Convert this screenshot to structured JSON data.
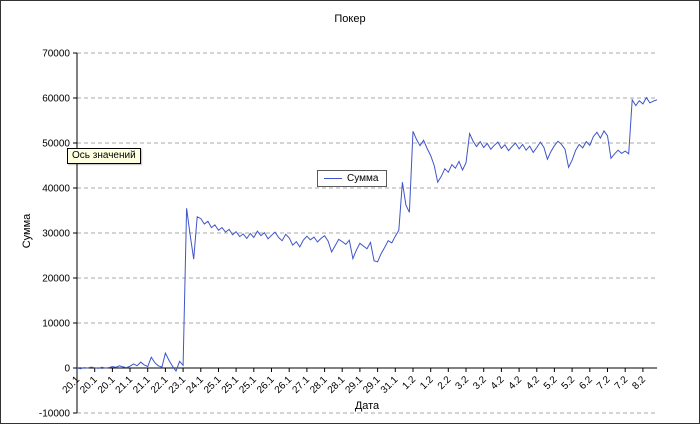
{
  "chart_data": {
    "type": "line",
    "title": "Покер",
    "xlabel": "Дата",
    "ylabel": "Сумма",
    "legend": "Сумма",
    "legend_position": "center",
    "tooltip": "Ось значений",
    "ylim": [
      -10000,
      70000
    ],
    "yticks": [
      70000,
      60000,
      50000,
      40000,
      30000,
      20000,
      10000,
      0,
      -10000
    ],
    "axis_cross": 0,
    "grid": "dashed-horizontal",
    "label_every": 5,
    "x_tick_labels": [
      "20.1",
      "20.1",
      "20.1",
      "21.1",
      "21.1",
      "22.1",
      "23.1",
      "24.1",
      "25.1",
      "25.1",
      "25.1",
      "26.1",
      "26.1",
      "27.1",
      "28.1",
      "28.1",
      "29.1",
      "29.1",
      "31.1",
      "1.2",
      "1.2",
      "2.2",
      "3.2",
      "3.2",
      "4.2",
      "4.2",
      "4.2",
      "5.2",
      "5.2",
      "6.2",
      "7.2",
      "7.2",
      "8.2"
    ],
    "colors": {
      "line": "#4055c8",
      "grid": "#a8a8a8",
      "axis": "#000000",
      "tooltip_bg": "#ffffe1"
    },
    "values": [
      0,
      -150,
      100,
      0,
      200,
      50,
      -100,
      150,
      0,
      100,
      300,
      150,
      500,
      250,
      100,
      400,
      900,
      500,
      1300,
      700,
      300,
      2400,
      1200,
      500,
      200,
      3300,
      1700,
      400,
      -700,
      1500,
      600,
      35500,
      29500,
      24200,
      33600,
      33200,
      32000,
      32600,
      31200,
      31800,
      30600,
      31200,
      30200,
      30800,
      29600,
      30300,
      29200,
      29800,
      28800,
      29900,
      29000,
      30400,
      29400,
      30100,
      28700,
      29500,
      30200,
      29000,
      28300,
      29700,
      28900,
      27300,
      28100,
      26900,
      28400,
      29300,
      28500,
      29100,
      28000,
      28800,
      29400,
      28200,
      25800,
      27200,
      28600,
      28100,
      27500,
      28400,
      24300,
      26200,
      27700,
      27100,
      26500,
      27900,
      23800,
      23600,
      25400,
      26800,
      28300,
      27800,
      29300,
      30600,
      41300,
      36200,
      34600,
      52600,
      50800,
      49400,
      50600,
      48800,
      47200,
      45000,
      41300,
      42600,
      44300,
      43500,
      45200,
      44400,
      45900,
      44000,
      45600,
      52100,
      50400,
      49200,
      50300,
      49000,
      49900,
      48600,
      49500,
      50200,
      48800,
      49600,
      48300,
      49200,
      50000,
      48700,
      49700,
      48400,
      49300,
      47900,
      49000,
      50200,
      49100,
      46400,
      48100,
      49400,
      50400,
      49700,
      48600,
      44600,
      46200,
      48400,
      49700,
      48900,
      50300,
      49500,
      51400,
      52400,
      51100,
      52700,
      51600,
      46600,
      47600,
      48400,
      47700,
      48200,
      47600,
      59600,
      58300,
      59400,
      58700,
      60100,
      58900,
      59300,
      59600
    ]
  }
}
